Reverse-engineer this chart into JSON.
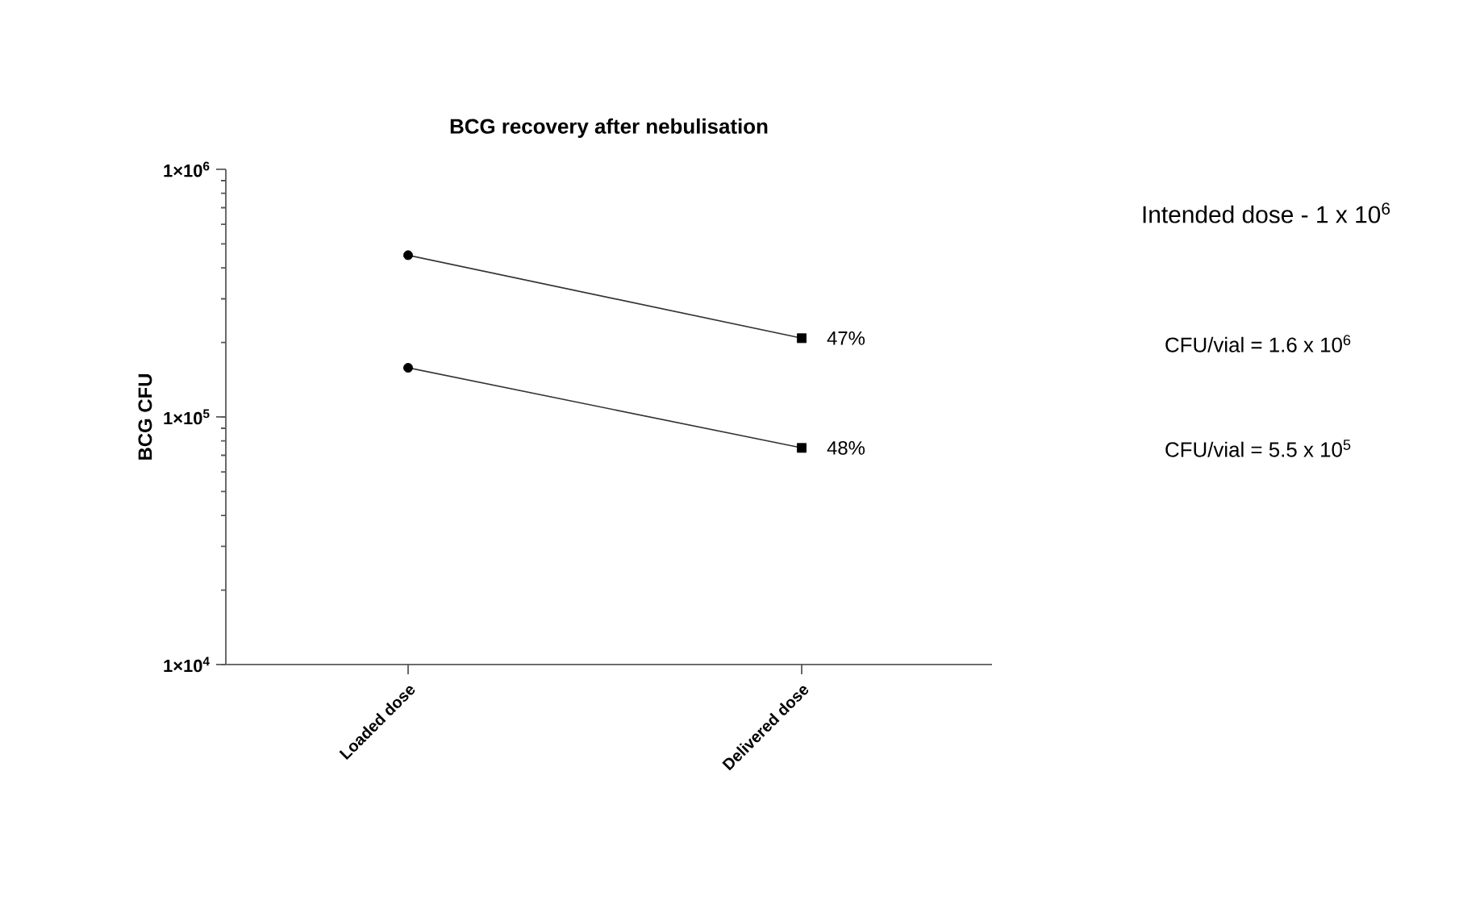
{
  "chart_data": {
    "type": "line",
    "title": "BCG recovery after nebulisation",
    "ylabel": "BCG CFU",
    "categories": [
      "Loaded dose",
      "Delivered dose"
    ],
    "series": [
      {
        "color": "#000000",
        "values": [
          450000,
          208000
        ],
        "marker": [
          "circle",
          "square"
        ]
      },
      {
        "color": "#000000",
        "values": [
          158000,
          75000
        ],
        "marker": [
          "circle",
          "square"
        ]
      }
    ],
    "log": true,
    "ylim": [
      10000,
      1000000
    ],
    "yticks": [
      {
        "value": 10000,
        "label": "1×10$^{4}$"
      },
      {
        "value": 100000,
        "label": "1×10$^{5}$"
      },
      {
        "value": 1000000,
        "label": "1×10$^{6}$"
      }
    ],
    "grid": false,
    "annotations": [
      "Intended dose - 1 x 10$^{6}$",
      "CFU/vial = 1.6 x 10$^{6}$",
      "CFU/vial = 5.5 x 10$^{5}$",
      {
        "text": "47%",
        "x": "Delivered dose",
        "y": 208000
      },
      {
        "text": "48%",
        "x": "Delivered dose",
        "y": 75000
      }
    ]
  }
}
